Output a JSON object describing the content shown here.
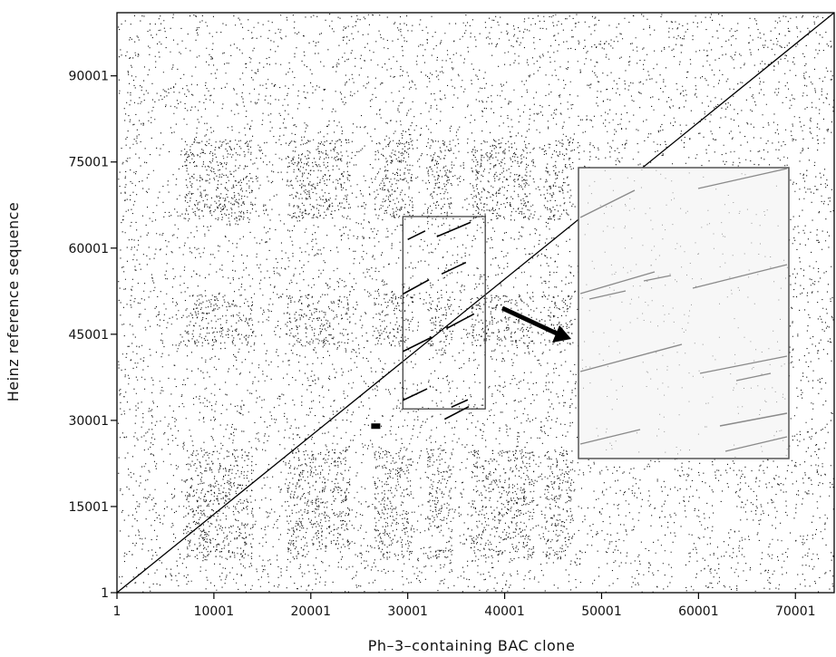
{
  "chart_data": {
    "type": "scatter",
    "subtype": "dot-plot",
    "title": "",
    "xlabel": "Ph–3–containing BAC clone",
    "ylabel": "Heinz reference sequence",
    "xlim": [
      1,
      74000
    ],
    "ylim": [
      1,
      101000
    ],
    "xticks": [
      1,
      10001,
      20001,
      30001,
      40001,
      50001,
      60001,
      70001
    ],
    "xtick_labels": [
      "1",
      "10001",
      "20001",
      "30001",
      "40001",
      "50001",
      "60001",
      "70001"
    ],
    "yticks": [
      1,
      15001,
      30001,
      45001,
      60001,
      75001,
      90001
    ],
    "ytick_labels": [
      "1",
      "15001",
      "30001",
      "45001",
      "60001",
      "75001",
      "90001"
    ],
    "grid": false,
    "legend": "none",
    "background_dot_density": "dense random matches with darker blocks at repeat regions",
    "dense_repeat_regions_x": [
      [
        7000,
        14000
      ],
      [
        17500,
        24000
      ],
      [
        26500,
        30500
      ],
      [
        32000,
        34500
      ],
      [
        36500,
        43000
      ],
      [
        44000,
        47000
      ]
    ],
    "dense_repeat_regions_y": [
      [
        6000,
        25000
      ],
      [
        43000,
        52000
      ],
      [
        65000,
        79000
      ]
    ],
    "main_diagonal": {
      "x": [
        1,
        74000
      ],
      "y": [
        1,
        101000
      ]
    },
    "diagonal_break_marker": {
      "x": 26700,
      "y": 29000
    },
    "zoom_box": {
      "x": [
        29500,
        38000
      ],
      "y": [
        32000,
        65500
      ]
    },
    "zoom_box_segments": [
      {
        "x": [
          29500,
          32000
        ],
        "y": [
          33500,
          35500
        ]
      },
      {
        "x": [
          33800,
          36300
        ],
        "y": [
          30200,
          32400
        ]
      },
      {
        "x": [
          34500,
          36200
        ],
        "y": [
          32300,
          33600
        ]
      },
      {
        "x": [
          29500,
          32500
        ],
        "y": [
          42000,
          44500
        ]
      },
      {
        "x": [
          34000,
          36800
        ],
        "y": [
          46000,
          48500
        ]
      },
      {
        "x": [
          29500,
          32200
        ],
        "y": [
          52000,
          54500
        ]
      },
      {
        "x": [
          33500,
          36000
        ],
        "y": [
          55500,
          57500
        ]
      },
      {
        "x": [
          30000,
          31800
        ],
        "y": [
          61500,
          63000
        ]
      },
      {
        "x": [
          33000,
          36500
        ],
        "y": [
          62000,
          64500
        ]
      }
    ],
    "inset_panel": "enlarged view of zoom box",
    "arrow": "from zoom box to enlarged inset"
  },
  "colors": {
    "dots": "#111111",
    "inset_background": "#f7f7f7",
    "inset_border": "#555555",
    "inset_lines": "#8a8a8a",
    "frame": "#000000"
  }
}
